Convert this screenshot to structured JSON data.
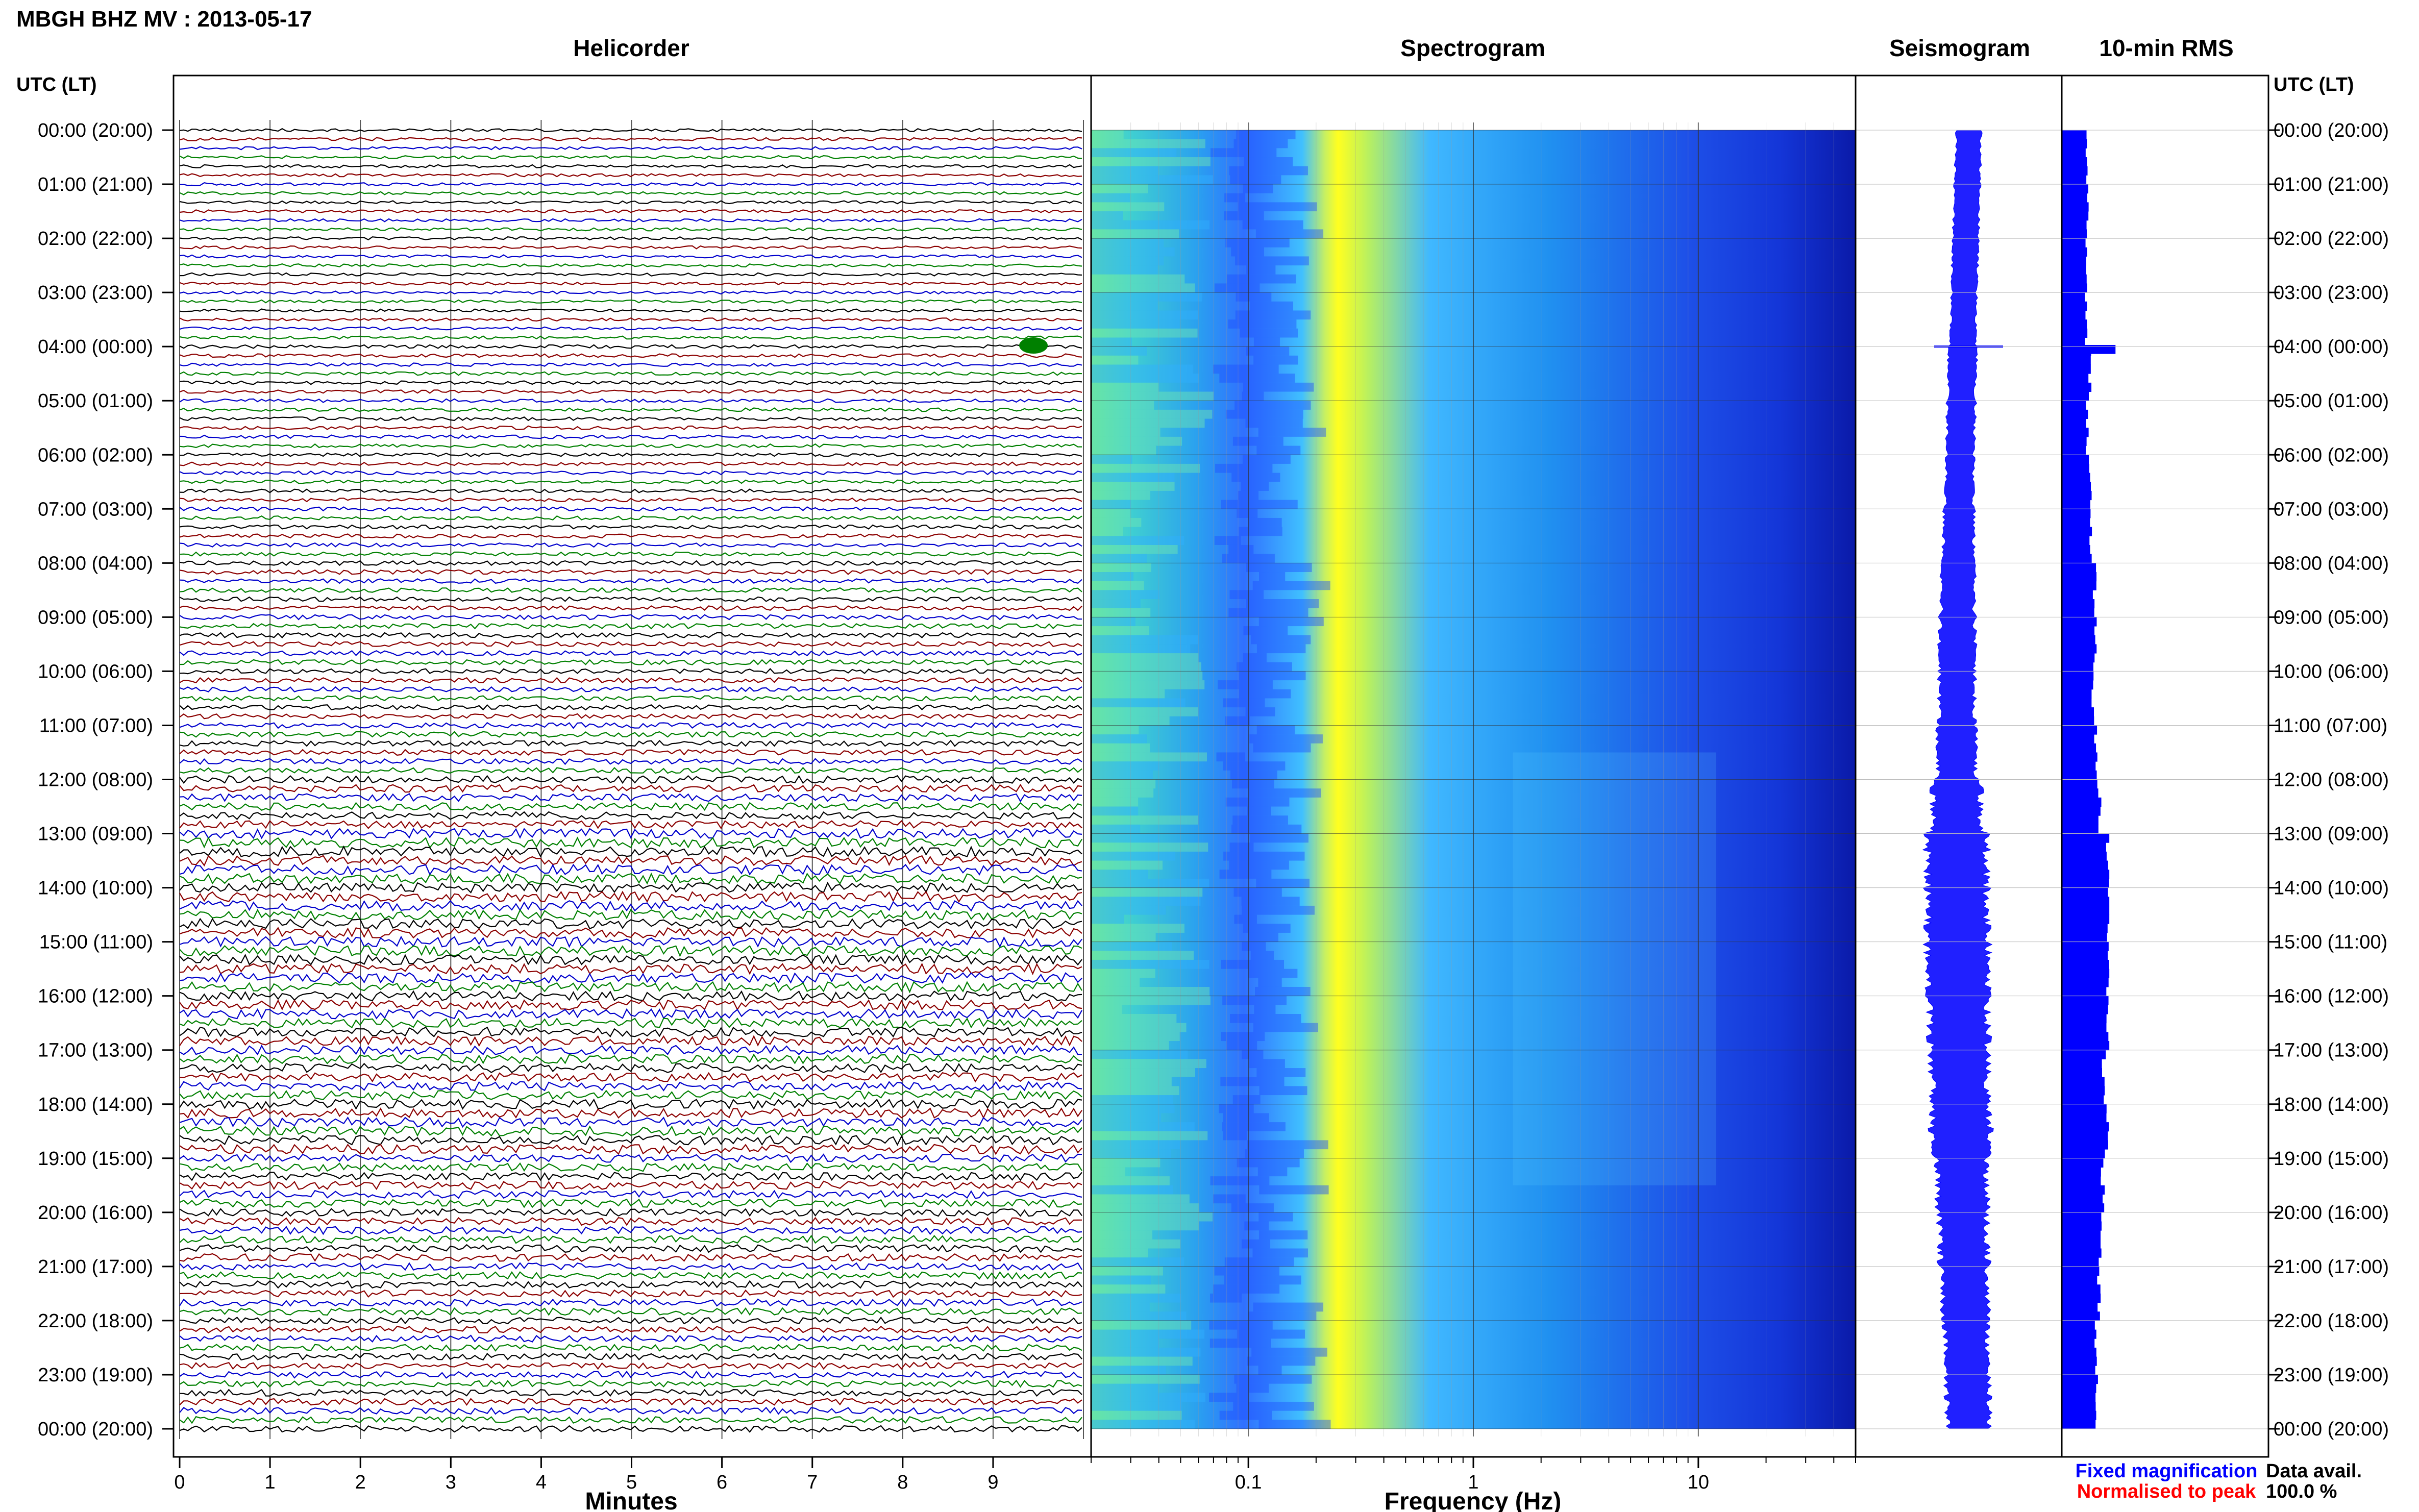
{
  "header": {
    "station_title": "MBGH BHZ MV : 2013-05-17",
    "utc_lt_left": "UTC (LT)",
    "utc_lt_right": "UTC (LT)"
  },
  "panels": {
    "helicorder": "Helicorder",
    "spectrogram": "Spectrogram",
    "seismogram": "Seismogram",
    "rms": "10-min RMS"
  },
  "legend": {
    "fixed": "Fixed magnification",
    "normalised": "Normalised to peak",
    "data_avail_label": "Data avail.",
    "data_avail_value": "100.0 %"
  },
  "colors": {
    "trace_cycle": [
      "#000000",
      "#8b0000",
      "#0000cc",
      "#008000"
    ],
    "rms_bar": "#0000ff",
    "fixed_text": "#0000ff",
    "normalised_text": "#ff0000",
    "spectrogram_low": "#1e1ee0",
    "spectrogram_mid": "#40c8ff",
    "spectrogram_high": "#ffff00"
  },
  "chart_data": [
    {
      "type": "line",
      "name": "helicorder",
      "xlabel": "Minutes",
      "xticks": [
        0,
        1,
        2,
        3,
        4,
        5,
        6,
        7,
        8,
        9
      ],
      "xlim": [
        0,
        10
      ],
      "lines_per_hour": 6,
      "row_labels": [
        "00:00 (20:00)",
        "01:00 (21:00)",
        "02:00 (22:00)",
        "03:00 (23:00)",
        "04:00 (00:00)",
        "05:00 (01:00)",
        "06:00 (02:00)",
        "07:00 (03:00)",
        "08:00 (04:00)",
        "09:00 (05:00)",
        "10:00 (06:00)",
        "11:00 (07:00)",
        "12:00 (08:00)",
        "13:00 (09:00)",
        "14:00 (10:00)",
        "15:00 (11:00)",
        "16:00 (12:00)",
        "17:00 (13:00)",
        "18:00 (14:00)",
        "19:00 (15:00)",
        "20:00 (16:00)",
        "21:00 (17:00)",
        "22:00 (18:00)",
        "23:00 (19:00)",
        "00:00 (20:00)"
      ],
      "hourly_relative_amplitude": [
        0.3,
        0.3,
        0.3,
        0.3,
        0.35,
        0.35,
        0.35,
        0.4,
        0.45,
        0.5,
        0.5,
        0.55,
        0.75,
        1.0,
        1.0,
        1.0,
        0.95,
        0.9,
        0.95,
        0.8,
        0.75,
        0.7,
        0.65,
        0.65
      ]
    },
    {
      "type": "heatmap",
      "name": "spectrogram",
      "xlabel": "Frequency (Hz)",
      "xscale": "log",
      "xticks": [
        0.1,
        1,
        10
      ],
      "xtick_labels": [
        "0.1",
        "1",
        "10"
      ],
      "xlim": [
        0.02,
        50
      ],
      "ylim_hours": [
        0,
        24
      ],
      "peak_frequency_hz": 0.25
    },
    {
      "type": "line",
      "name": "seismogram",
      "ylim_hours": [
        0,
        24
      ],
      "hourly_half_width": [
        0.3,
        0.3,
        0.3,
        0.3,
        0.35,
        0.35,
        0.35,
        0.4,
        0.45,
        0.5,
        0.5,
        0.55,
        0.75,
        1.0,
        1.0,
        1.0,
        0.95,
        0.9,
        0.95,
        0.8,
        0.75,
        0.7,
        0.65,
        0.65
      ],
      "spike_hour": 4.0
    },
    {
      "type": "bar",
      "name": "10-min RMS",
      "orientation": "horizontal",
      "ylim_hours": [
        0,
        24
      ],
      "hourly_relative_rms": [
        0.54,
        0.54,
        0.52,
        0.52,
        0.6,
        0.54,
        0.6,
        0.62,
        0.7,
        0.7,
        0.66,
        0.72,
        0.8,
        1.0,
        1.0,
        0.96,
        0.98,
        0.9,
        0.97,
        0.88,
        0.82,
        0.78,
        0.74,
        0.74
      ],
      "xlim": [
        0,
        1
      ]
    }
  ]
}
